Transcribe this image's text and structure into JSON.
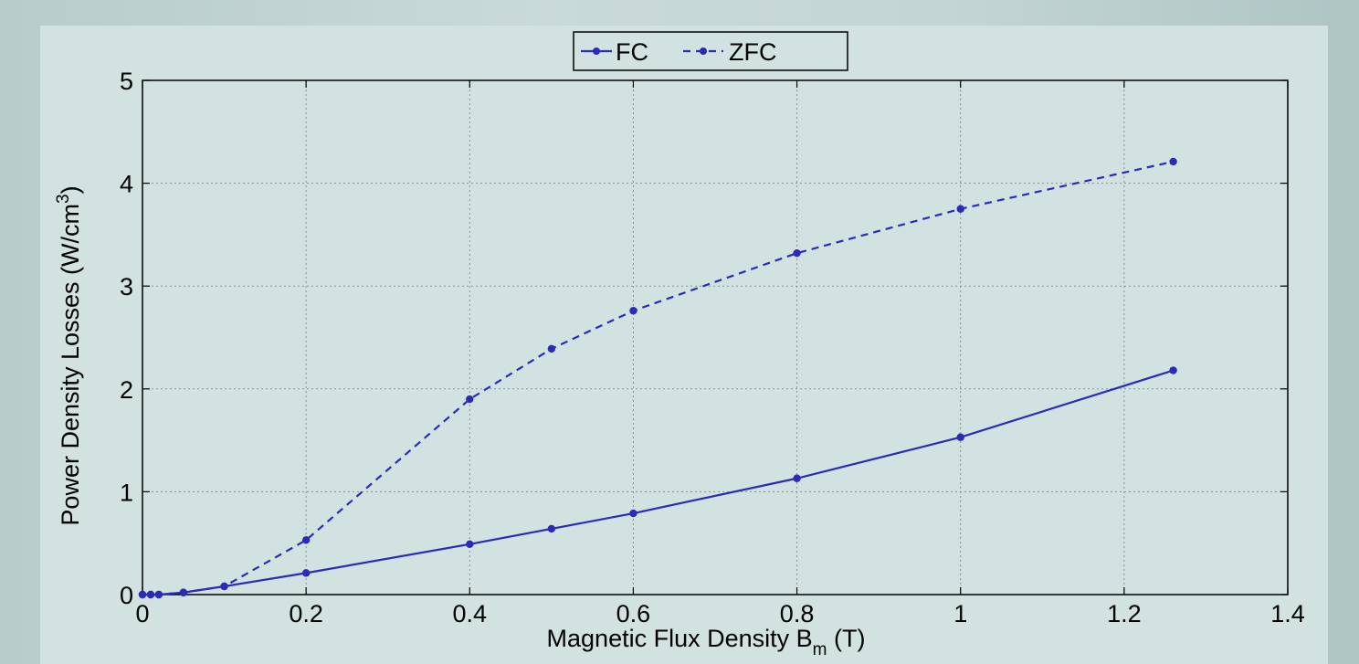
{
  "chart_data": {
    "type": "line",
    "title": "",
    "xlabel_main": "Magnetic Flux Density B",
    "xlabel_sub": "m",
    "xlabel_unit": " (T)",
    "ylabel_main": "Power Density Losses (W/cm",
    "ylabel_sup": "3",
    "ylabel_close": ")",
    "xlim": [
      0,
      1.4
    ],
    "ylim": [
      0,
      5
    ],
    "xticks": [
      0,
      0.2,
      0.4,
      0.6,
      0.8,
      1,
      1.2,
      1.4
    ],
    "xtick_labels": [
      "0",
      "0.2",
      "0.4",
      "0.6",
      "0.8",
      "1",
      "1.2",
      "1.4"
    ],
    "yticks": [
      0,
      1,
      2,
      3,
      4,
      5
    ],
    "ytick_labels": [
      "0",
      "1",
      "2",
      "3",
      "4",
      "5"
    ],
    "grid": true,
    "legend_position": "top-center",
    "series": [
      {
        "name": "FC",
        "style": "solid",
        "color": "#2a2bb8",
        "x": [
          0,
          0.01,
          0.02,
          0.05,
          0.1,
          0.2,
          0.4,
          0.5,
          0.6,
          0.8,
          1.0,
          1.26
        ],
        "y": [
          0,
          0,
          0,
          0.02,
          0.08,
          0.21,
          0.49,
          0.64,
          0.79,
          1.13,
          1.53,
          2.18
        ]
      },
      {
        "name": "ZFC",
        "style": "dashed",
        "color": "#2a2bb8",
        "x": [
          0,
          0.01,
          0.02,
          0.05,
          0.1,
          0.2,
          0.4,
          0.5,
          0.6,
          0.8,
          1.0,
          1.26
        ],
        "y": [
          0,
          0,
          0,
          0.02,
          0.08,
          0.53,
          1.9,
          2.39,
          2.76,
          3.32,
          3.75,
          4.21
        ]
      }
    ]
  }
}
